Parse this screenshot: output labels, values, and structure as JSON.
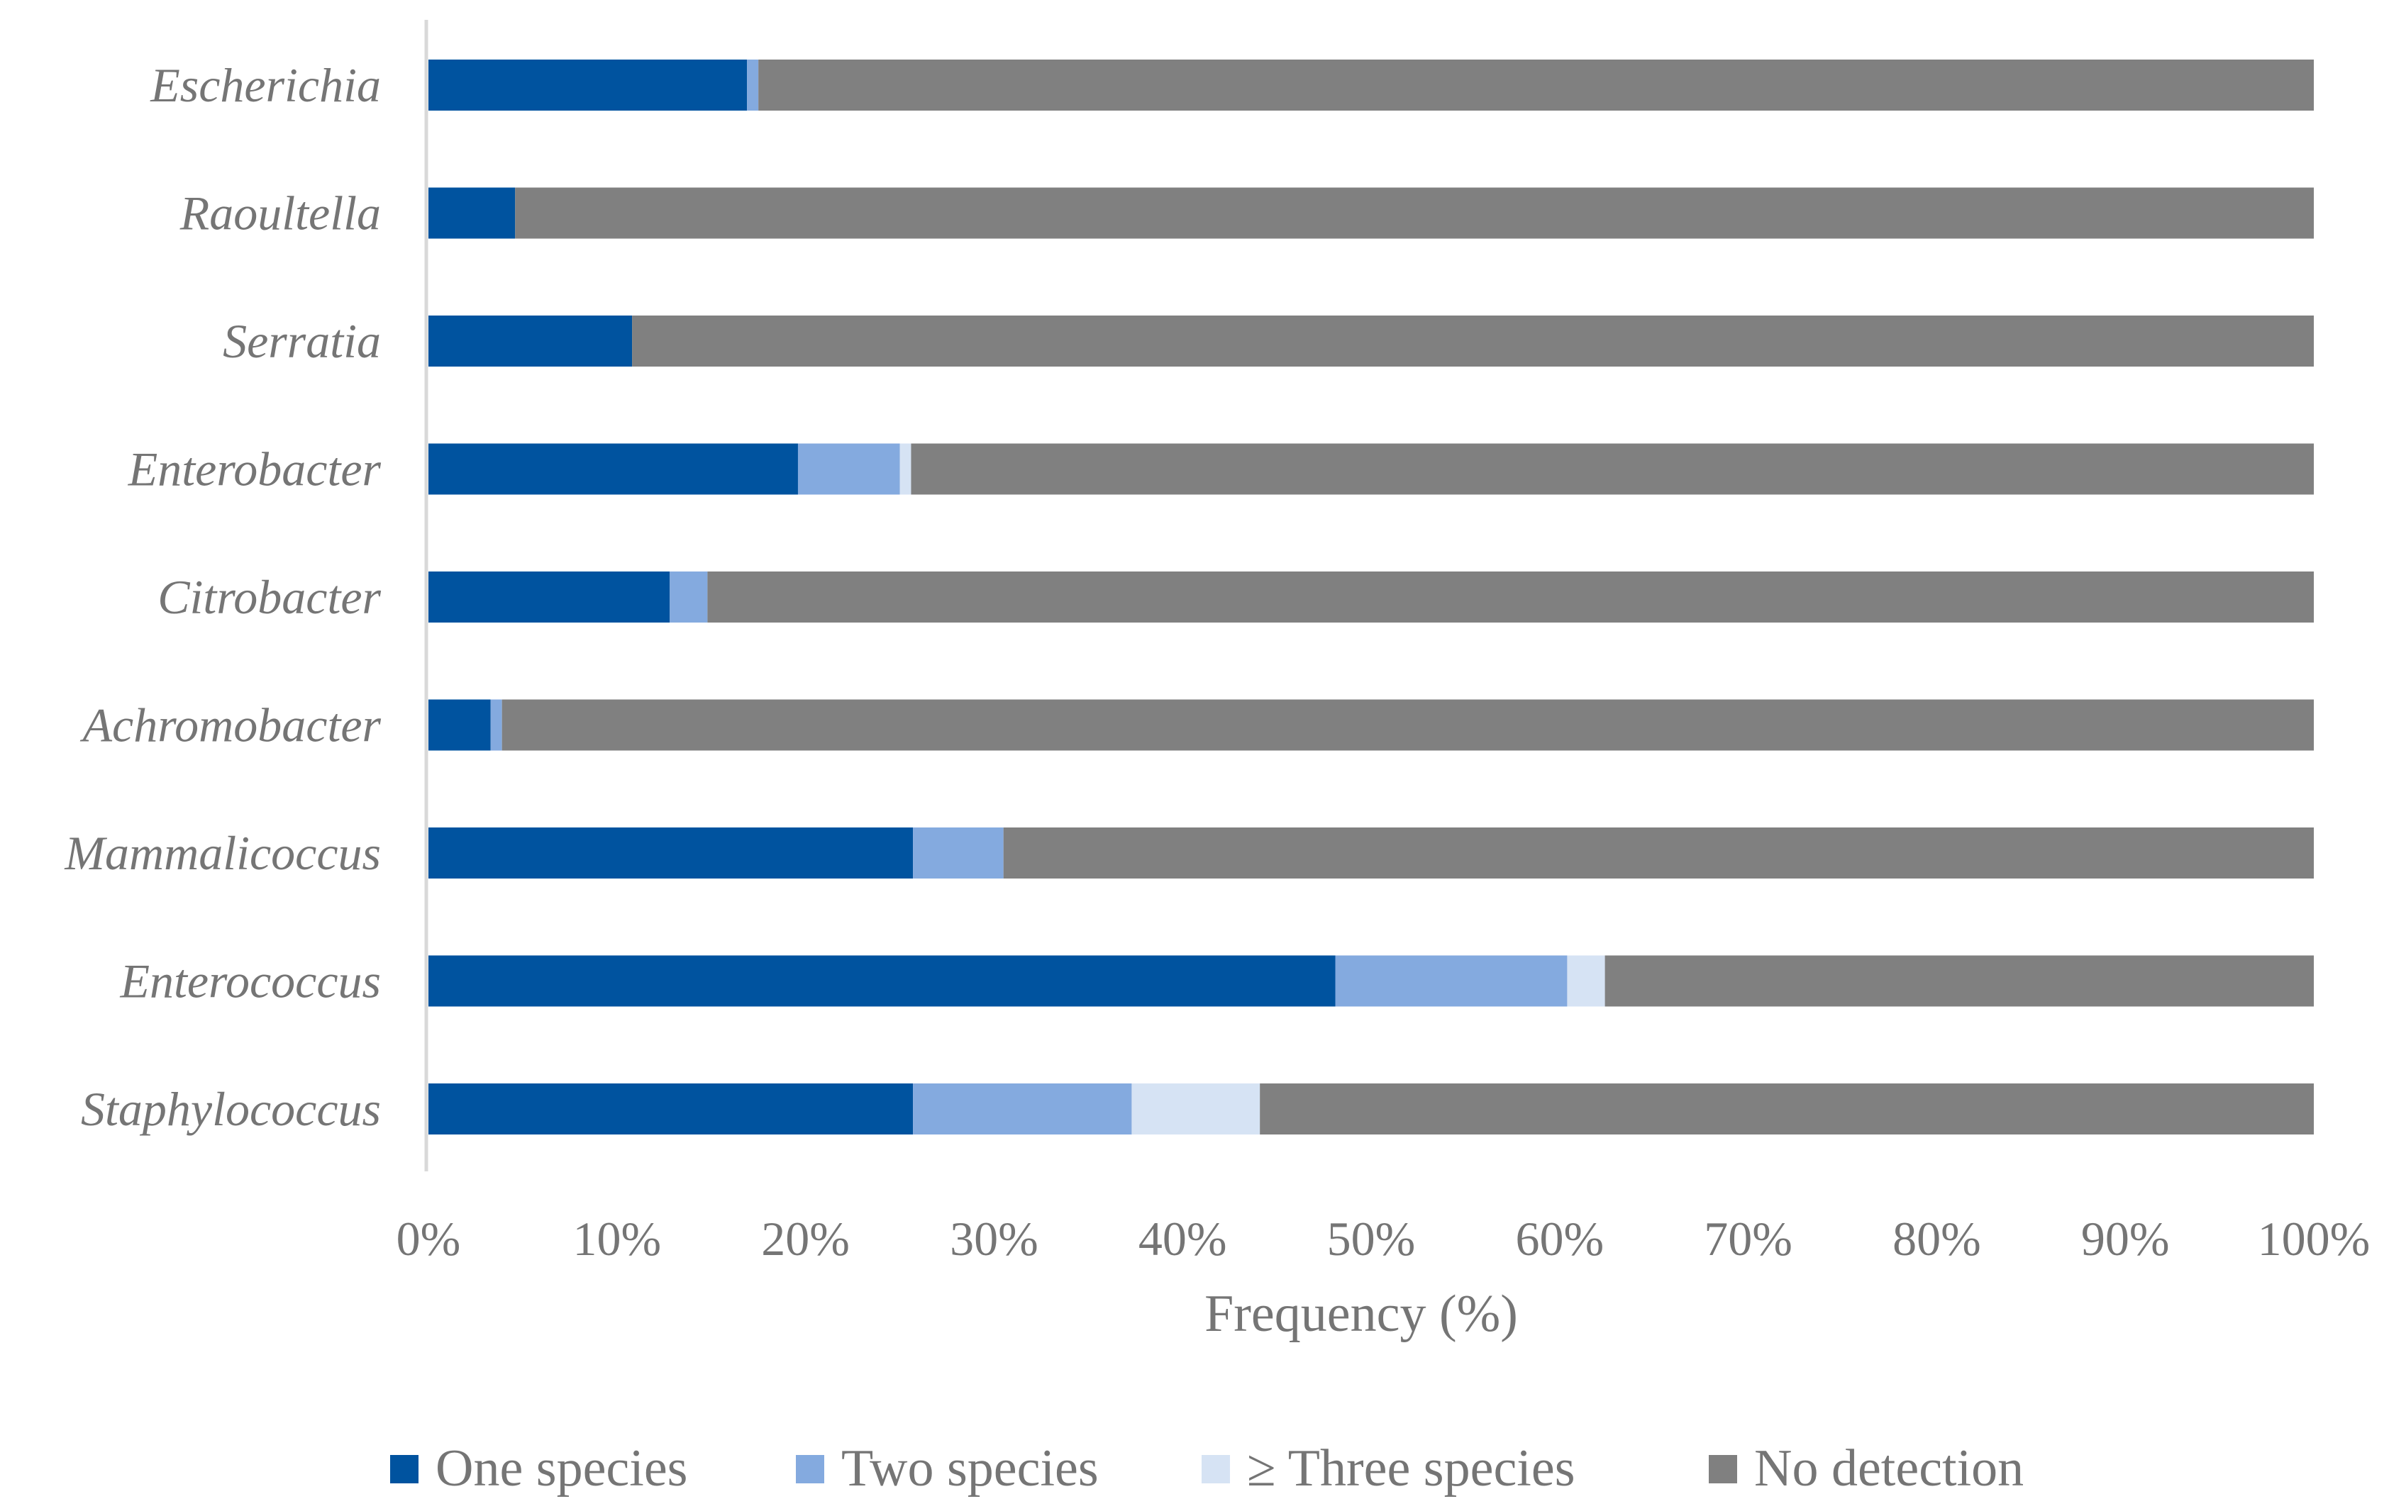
{
  "chart_data": {
    "type": "bar",
    "orientation": "horizontal",
    "stacked": "percent",
    "title": "",
    "xlabel": "Frequency (%)",
    "ylabel": "",
    "xlim": [
      0,
      100
    ],
    "xticks": [
      "0%",
      "10%",
      "20%",
      "30%",
      "40%",
      "50%",
      "60%",
      "70%",
      "80%",
      "90%",
      "100%"
    ],
    "grid": false,
    "legend_position": "bottom",
    "categories": [
      "Escherichia",
      "Raoultella",
      "Serratia",
      "Enterobacter",
      "Citrobacter",
      "Achromobacter",
      "Mammalicoccus",
      "Enterococcus",
      "Staphylococcus"
    ],
    "series": [
      {
        "name": "One species",
        "color": "#00539F",
        "values": [
          16.9,
          4.6,
          10.8,
          19.6,
          12.8,
          3.3,
          25.7,
          48.1,
          25.7
        ]
      },
      {
        "name": "Two species",
        "color": "#84AADF",
        "values": [
          0.6,
          0,
          0,
          5.4,
          2.0,
          0.6,
          4.8,
          12.3,
          11.6
        ]
      },
      {
        "name": "≥ Three species",
        "color": "#D6E3F4",
        "values": [
          0,
          0,
          0,
          0.6,
          0,
          0,
          0,
          2.0,
          6.8
        ]
      },
      {
        "name": "No detection",
        "color": "#808080",
        "values": [
          82.5,
          95.4,
          89.2,
          74.4,
          85.2,
          96.1,
          69.5,
          37.6,
          55.9
        ]
      }
    ]
  }
}
